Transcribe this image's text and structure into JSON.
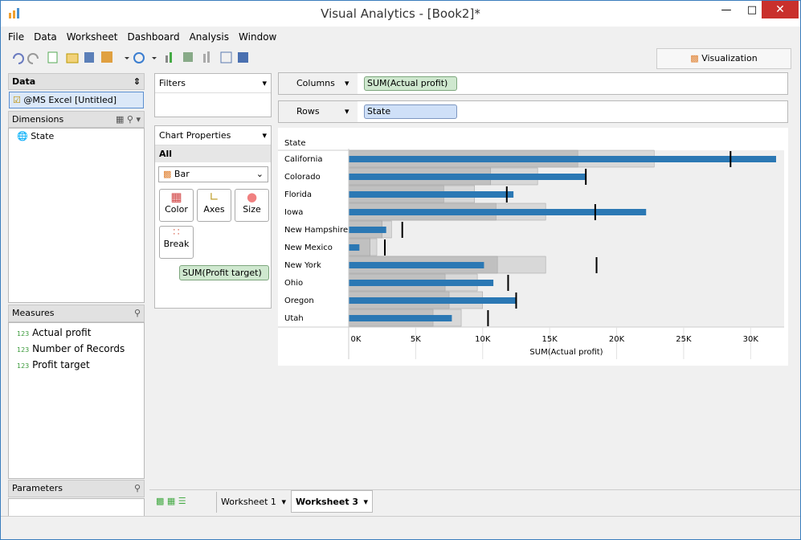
{
  "window": {
    "title": "Visual Analytics - [Book2]*"
  },
  "menu": [
    "File",
    "Data",
    "Worksheet",
    "Dashboard",
    "Analysis",
    "Window"
  ],
  "toolbar": {
    "tab": "Visualization"
  },
  "data_panel": {
    "title": "Data",
    "source": "@MS Excel [Untitled]",
    "dimensions_title": "Dimensions",
    "dimensions": [
      "State"
    ],
    "measures_title": "Measures",
    "measures": [
      {
        "icon": "123",
        "name": "Actual profit"
      },
      {
        "icon": "123",
        "name": "Number of Records"
      },
      {
        "icon": "123",
        "name": "Profit target"
      }
    ],
    "parameters_title": "Parameters"
  },
  "filters": {
    "title": "Filters"
  },
  "chart_properties": {
    "title": "Chart Properties",
    "scope": "All",
    "chart_type": "Bar",
    "buttons": [
      "Color",
      "Axes",
      "Size",
      "Break"
    ],
    "field": "SUM(Profit target)"
  },
  "shelves": {
    "columns_label": "Columns",
    "columns_pill": "SUM(Actual profit)",
    "rows_label": "Rows",
    "rows_pill": "State"
  },
  "sheet_tabs": [
    "Worksheet 1",
    "Worksheet 3"
  ],
  "chart_data": {
    "type": "bullet",
    "row_header": "State",
    "x_label": "SUM(Actual profit)",
    "categories": [
      "California",
      "Colorado",
      "Florida",
      "Iowa",
      "New Hampshire",
      "New Mexico",
      "New York",
      "Ohio",
      "Oregon",
      "Utah"
    ],
    "series": [
      {
        "name": "Actual profit",
        "color": "#2b78b4",
        "values": [
          31900,
          17700,
          12300,
          22200,
          2800,
          800,
          10100,
          10800,
          12500,
          7700
        ]
      },
      {
        "name": "Profit target",
        "color": "#000000",
        "values": [
          28500,
          17700,
          11800,
          18400,
          4000,
          2700,
          18500,
          11900,
          12500,
          10400
        ]
      }
    ],
    "bands": [
      {
        "color": "#d8d8d8",
        "values": [
          22800,
          14100,
          9400,
          14700,
          3200,
          2100,
          14700,
          9600,
          10000,
          8400
        ]
      },
      {
        "color": "#c0c0c0",
        "values": [
          17100,
          10600,
          7100,
          11000,
          2500,
          1600,
          11100,
          7200,
          7500,
          6300
        ]
      }
    ],
    "xlim": [
      0,
      32500
    ],
    "xticks": [
      {
        "value": 0,
        "label": "0K"
      },
      {
        "value": 5000,
        "label": "5K"
      },
      {
        "value": 10000,
        "label": "10K"
      },
      {
        "value": 15000,
        "label": "15K"
      },
      {
        "value": 20000,
        "label": "20K"
      },
      {
        "value": 25000,
        "label": "25K"
      },
      {
        "value": 30000,
        "label": "30K"
      }
    ]
  }
}
